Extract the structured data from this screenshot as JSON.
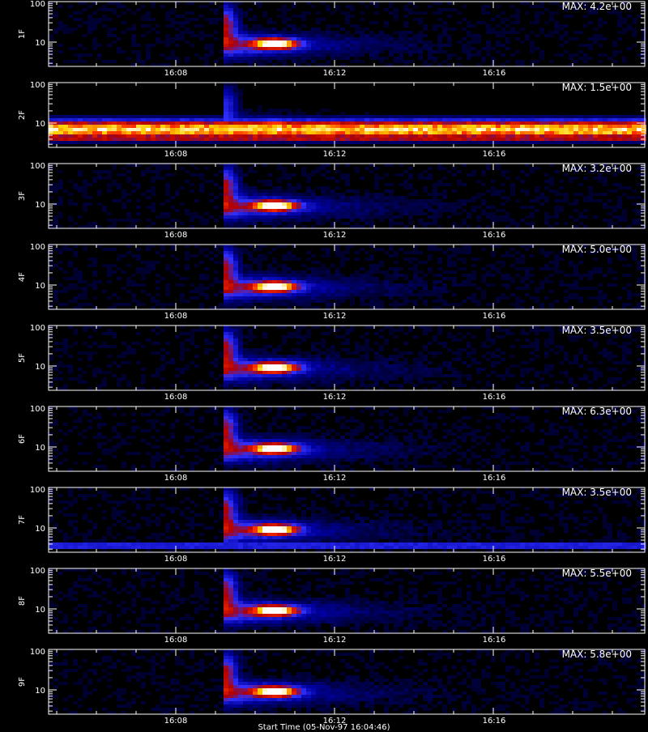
{
  "chart_data": {
    "type": "heatmap",
    "x_axis": {
      "ticks": [
        "16:08",
        "16:12",
        "16:16"
      ],
      "label": "Start Time (05-Nov-97 16:04:46)"
    },
    "y_axis": {
      "scale": "log",
      "ticks": [
        "10",
        "100"
      ]
    },
    "colormap": [
      "#000000",
      "#0000a0",
      "#3030ff",
      "#b00000",
      "#ff3000",
      "#ffd000",
      "#ffffff"
    ],
    "panels": [
      {
        "name": "1F",
        "max_label": "MAX: 4.2e+00",
        "band": 0.0
      },
      {
        "name": "2F",
        "max_label": "MAX: 1.5e+00",
        "band": 1.0
      },
      {
        "name": "3F",
        "max_label": "MAX: 3.2e+00",
        "band": 0.0
      },
      {
        "name": "4F",
        "max_label": "MAX: 5.0e+00",
        "band": 0.0
      },
      {
        "name": "5F",
        "max_label": "MAX: 3.5e+00",
        "band": 0.0
      },
      {
        "name": "6F",
        "max_label": "MAX: 6.3e+00",
        "band": 0.0
      },
      {
        "name": "7F",
        "max_label": "MAX: 3.5e+00",
        "band": 0.35
      },
      {
        "name": "8F",
        "max_label": "MAX: 5.5e+00",
        "band": 0.0
      },
      {
        "name": "9F",
        "max_label": "MAX: 5.8e+00",
        "band": 0.0
      }
    ]
  }
}
